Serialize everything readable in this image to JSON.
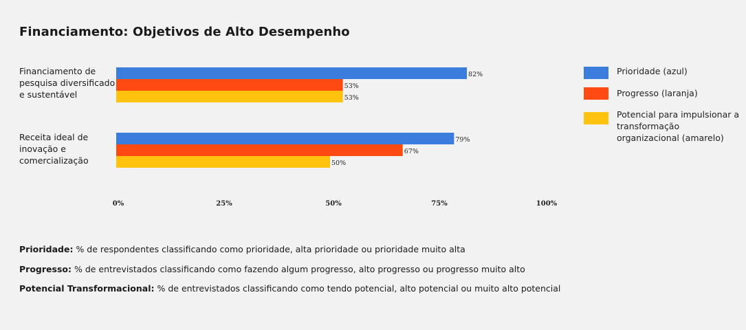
{
  "chart_data": {
    "type": "bar",
    "orientation": "horizontal",
    "title": "Financiamento: Objetivos de Alto Desempenho",
    "categories": [
      "Financiamento de pesquisa diversificado e sustentável",
      "Receita ideal de inovação e comercialização"
    ],
    "series": [
      {
        "name": "Prioridade (azul)",
        "color": "#3b7ddd",
        "values": [
          82,
          79
        ]
      },
      {
        "name": "Progresso (laranja)",
        "color": "#ff4a11",
        "values": [
          53,
          67
        ]
      },
      {
        "name": "Potencial para impulsionar a transformação organizacional (amarelo)",
        "color": "#ffc20e",
        "values": [
          53,
          50
        ]
      }
    ],
    "value_suffix": "%",
    "xlim": [
      0,
      100
    ],
    "xticks": [
      "0%",
      "25%",
      "50%",
      "75%",
      "100%"
    ],
    "grid": false,
    "legend_position": "right"
  },
  "notes": [
    {
      "term": "Prioridade:",
      "text": "% de respondentes classificando como prioridade, alta prioridade ou prioridade muito alta"
    },
    {
      "term": "Progresso:",
      "text": "% de entrevistados classificando como fazendo algum progresso, alto progresso ou progresso muito alto"
    },
    {
      "term": "Potencial Transformacional:",
      "text": "% de entrevistados classificando como tendo potencial, alto potencial ou muito alto potencial"
    }
  ]
}
